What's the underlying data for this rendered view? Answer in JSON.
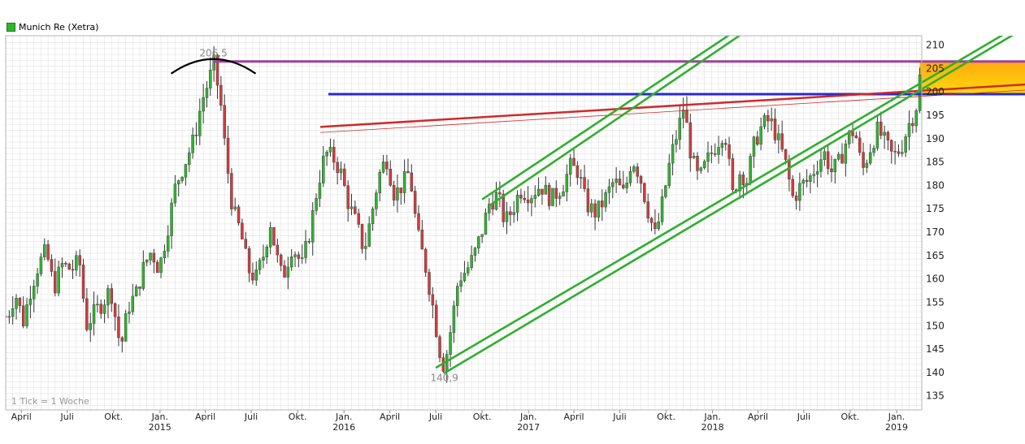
{
  "chart_data": {
    "type": "candlestick",
    "title": "Munich Re (Xetra)",
    "legend": [
      {
        "name": "Munich Re (Xetra)",
        "color": "#2fb52f"
      }
    ],
    "tick_note": "1 Tick = 1 Woche",
    "y_ticks": [
      135,
      140,
      145,
      150,
      155,
      160,
      165,
      170,
      175,
      180,
      185,
      190,
      195,
      200,
      205,
      210
    ],
    "ylim": [
      132,
      212
    ],
    "x_range": [
      "2014-03-01",
      "2019-02-20"
    ],
    "x_ticks": [
      {
        "date": "2014-04-01",
        "label": "April",
        "year": ""
      },
      {
        "date": "2014-07-01",
        "label": "Juli",
        "year": ""
      },
      {
        "date": "2014-10-01",
        "label": "Okt.",
        "year": ""
      },
      {
        "date": "2015-01-01",
        "label": "Jan.",
        "year": "2015"
      },
      {
        "date": "2015-04-01",
        "label": "April",
        "year": ""
      },
      {
        "date": "2015-07-01",
        "label": "Juli",
        "year": ""
      },
      {
        "date": "2015-10-01",
        "label": "Okt.",
        "year": ""
      },
      {
        "date": "2016-01-01",
        "label": "Jan.",
        "year": "2016"
      },
      {
        "date": "2016-04-01",
        "label": "April",
        "year": ""
      },
      {
        "date": "2016-07-01",
        "label": "Juli",
        "year": ""
      },
      {
        "date": "2016-10-01",
        "label": "Okt.",
        "year": ""
      },
      {
        "date": "2017-01-01",
        "label": "Jan.",
        "year": "2017"
      },
      {
        "date": "2017-04-01",
        "label": "April",
        "year": ""
      },
      {
        "date": "2017-07-01",
        "label": "Juli",
        "year": ""
      },
      {
        "date": "2017-10-01",
        "label": "Okt.",
        "year": ""
      },
      {
        "date": "2018-01-01",
        "label": "Jan.",
        "year": "2018"
      },
      {
        "date": "2018-04-01",
        "label": "April",
        "year": ""
      },
      {
        "date": "2018-07-01",
        "label": "Juli",
        "year": ""
      },
      {
        "date": "2018-10-01",
        "label": "Okt.",
        "year": ""
      },
      {
        "date": "2019-01-01",
        "label": "Jan.",
        "year": "2019"
      }
    ],
    "anchors": [
      [
        "2014-03-05",
        152
      ],
      [
        "2014-03-20",
        157
      ],
      [
        "2014-04-05",
        151
      ],
      [
        "2014-04-20",
        158
      ],
      [
        "2014-05-05",
        163
      ],
      [
        "2014-05-20",
        166
      ],
      [
        "2014-06-05",
        158
      ],
      [
        "2014-06-20",
        163
      ],
      [
        "2014-07-10",
        162
      ],
      [
        "2014-07-25",
        164
      ],
      [
        "2014-08-08",
        150
      ],
      [
        "2014-08-25",
        153
      ],
      [
        "2014-09-10",
        155
      ],
      [
        "2014-09-25",
        158
      ],
      [
        "2014-10-15",
        145
      ],
      [
        "2014-10-30",
        154
      ],
      [
        "2014-11-15",
        157
      ],
      [
        "2014-12-01",
        163
      ],
      [
        "2014-12-15",
        166
      ],
      [
        "2014-12-30",
        162
      ],
      [
        "2015-01-15",
        170
      ],
      [
        "2015-02-01",
        180
      ],
      [
        "2015-02-20",
        185
      ],
      [
        "2015-03-10",
        190
      ],
      [
        "2015-03-25",
        198
      ],
      [
        "2015-04-10",
        203
      ],
      [
        "2015-04-17",
        206.5
      ],
      [
        "2015-05-01",
        198
      ],
      [
        "2015-05-10",
        188
      ],
      [
        "2015-05-25",
        175
      ],
      [
        "2015-06-10",
        170
      ],
      [
        "2015-06-25",
        162
      ],
      [
        "2015-07-10",
        160
      ],
      [
        "2015-07-25",
        165
      ],
      [
        "2015-08-08",
        172
      ],
      [
        "2015-08-20",
        165
      ],
      [
        "2015-09-01",
        160
      ],
      [
        "2015-09-20",
        167
      ],
      [
        "2015-10-10",
        163
      ],
      [
        "2015-10-25",
        170
      ],
      [
        "2015-11-10",
        180
      ],
      [
        "2015-11-25",
        187
      ],
      [
        "2015-12-10",
        186
      ],
      [
        "2015-12-25",
        183
      ],
      [
        "2016-01-10",
        176
      ],
      [
        "2016-01-25",
        172
      ],
      [
        "2016-02-10",
        166
      ],
      [
        "2016-02-25",
        174
      ],
      [
        "2016-03-10",
        182
      ],
      [
        "2016-03-25",
        186
      ],
      [
        "2016-04-10",
        178
      ],
      [
        "2016-04-25",
        180
      ],
      [
        "2016-05-10",
        183
      ],
      [
        "2016-05-25",
        170
      ],
      [
        "2016-06-10",
        163
      ],
      [
        "2016-06-24",
        155
      ],
      [
        "2016-07-08",
        145
      ],
      [
        "2016-07-18",
        141
      ],
      [
        "2016-08-01",
        150
      ],
      [
        "2016-08-15",
        160
      ],
      [
        "2016-09-01",
        162
      ],
      [
        "2016-09-15",
        165
      ],
      [
        "2016-09-30",
        170
      ],
      [
        "2016-10-15",
        176
      ],
      [
        "2016-11-01",
        178
      ],
      [
        "2016-11-15",
        172
      ],
      [
        "2016-12-01",
        175
      ],
      [
        "2016-12-15",
        179
      ],
      [
        "2017-01-05",
        178
      ],
      [
        "2017-01-25",
        180
      ],
      [
        "2017-02-15",
        177
      ],
      [
        "2017-03-10",
        180
      ],
      [
        "2017-03-25",
        184
      ],
      [
        "2017-04-10",
        183
      ],
      [
        "2017-04-25",
        176
      ],
      [
        "2017-05-15",
        174
      ],
      [
        "2017-06-01",
        177
      ],
      [
        "2017-06-20",
        181
      ],
      [
        "2017-07-10",
        178
      ],
      [
        "2017-07-25",
        186
      ],
      [
        "2017-08-10",
        182
      ],
      [
        "2017-08-25",
        175
      ],
      [
        "2017-09-10",
        169
      ],
      [
        "2017-09-25",
        177
      ],
      [
        "2017-10-10",
        186
      ],
      [
        "2017-10-25",
        192
      ],
      [
        "2017-11-05",
        197
      ],
      [
        "2017-11-20",
        186
      ],
      [
        "2017-12-05",
        181
      ],
      [
        "2017-12-20",
        185
      ],
      [
        "2018-01-10",
        189
      ],
      [
        "2018-01-25",
        192
      ],
      [
        "2018-02-10",
        178
      ],
      [
        "2018-02-25",
        183
      ],
      [
        "2018-03-10",
        181
      ],
      [
        "2018-03-25",
        189
      ],
      [
        "2018-04-10",
        193
      ],
      [
        "2018-04-25",
        194
      ],
      [
        "2018-05-10",
        190
      ],
      [
        "2018-05-25",
        185
      ],
      [
        "2018-06-10",
        177
      ],
      [
        "2018-06-25",
        180
      ],
      [
        "2018-07-10",
        181
      ],
      [
        "2018-07-25",
        184
      ],
      [
        "2018-08-10",
        187
      ],
      [
        "2018-08-25",
        183
      ],
      [
        "2018-09-10",
        185
      ],
      [
        "2018-09-25",
        190
      ],
      [
        "2018-10-10",
        192
      ],
      [
        "2018-10-25",
        183
      ],
      [
        "2018-11-10",
        188
      ],
      [
        "2018-11-25",
        192
      ],
      [
        "2018-12-10",
        189
      ],
      [
        "2018-12-25",
        186
      ],
      [
        "2019-01-10",
        188
      ],
      [
        "2019-01-25",
        193
      ],
      [
        "2019-02-08",
        196
      ],
      [
        "2019-02-15",
        203
      ]
    ],
    "annotations": [
      {
        "text": "206,5",
        "date": "2015-04-17",
        "value": 206.5,
        "placement": "above"
      },
      {
        "text": "140,9",
        "date": "2016-07-18",
        "value": 140.9,
        "placement": "below"
      }
    ],
    "overlays": {
      "horizontal_lines": [
        {
          "value": 206.5,
          "color": "#a040a0",
          "from": "2015-04-17"
        },
        {
          "value": 199.5,
          "color": "#2a2ad0",
          "from": "2015-12-01"
        }
      ],
      "resistance_trend": {
        "color": "#d02a2a",
        "from": [
          "2015-11-15",
          192.5
        ],
        "to": [
          "2019-02-20",
          201
        ]
      },
      "channel_lower": {
        "color": "#2faf2f",
        "from": [
          "2016-07-01",
          141
        ],
        "to": [
          "2019-02-20",
          202
        ],
        "offset": 1.2
      },
      "channel_upper": {
        "color": "#2faf2f",
        "from": [
          "2016-10-01",
          177
        ],
        "to": [
          "2018-02-01",
          212
        ],
        "offset": 1.2
      },
      "resistance_zone": {
        "from_value": 199.5,
        "to_value": 206.5,
        "colors": [
          "#ffa500",
          "#ffd700"
        ]
      },
      "peak_arc": {
        "center": "2015-04-17",
        "value": 206.5,
        "color": "#000000"
      }
    },
    "colors": {
      "up": "#2fb52f",
      "down": "#d63a3a",
      "wick": "#333333",
      "grid": "#e1e1e1"
    }
  }
}
